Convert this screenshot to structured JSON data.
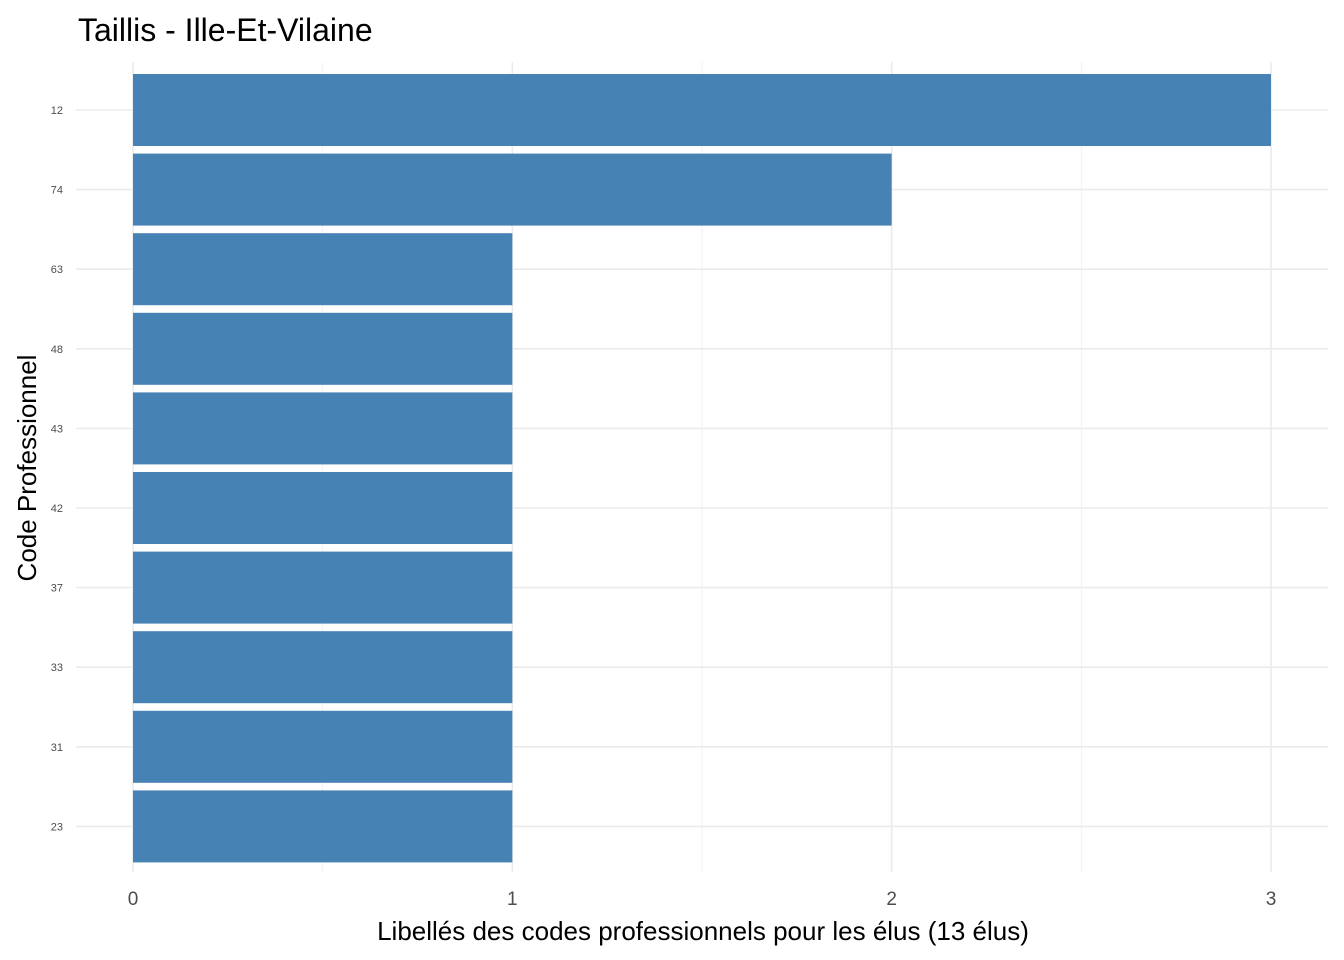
{
  "chart_data": {
    "type": "bar",
    "orientation": "horizontal",
    "title": "Taillis - Ille-Et-Vilaine",
    "xlabel": "Libellés des codes professionnels pour les élus (13 élus)",
    "ylabel": "Code Professionnel",
    "categories": [
      "12",
      "74",
      "63",
      "48",
      "43",
      "42",
      "37",
      "33",
      "31",
      "23"
    ],
    "values": [
      3,
      2,
      1,
      1,
      1,
      1,
      1,
      1,
      1,
      1
    ],
    "xlim": [
      0,
      3
    ],
    "x_ticks": [
      "0",
      "1",
      "2",
      "3"
    ],
    "bar_color": "#4682b4",
    "grid": true,
    "legend": "none"
  }
}
